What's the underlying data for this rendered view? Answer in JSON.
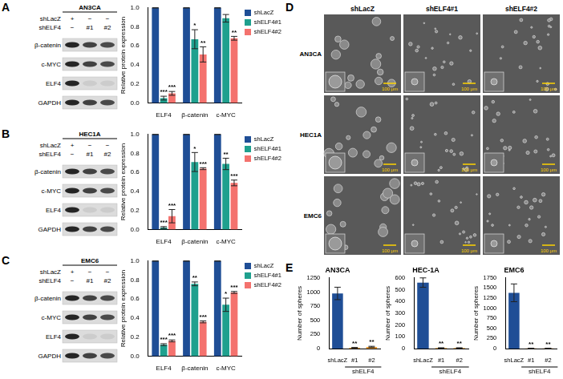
{
  "chart_data": [
    {
      "panel": "A",
      "type": "bar",
      "categories": [
        "ELF4",
        "β-catenin",
        "c-MYC"
      ],
      "y_label": "Relative protein expression",
      "ylim": [
        0,
        1
      ],
      "yticks": [
        {
          "value": 0,
          "label": "0.0"
        },
        {
          "value": 0.2,
          "label": "0.2"
        },
        {
          "value": 0.4,
          "label": "0.4"
        },
        {
          "value": 0.6,
          "label": "0.6"
        },
        {
          "value": 0.8,
          "label": "0.8"
        },
        {
          "value": 1,
          "label": "1.0"
        }
      ],
      "grid": false,
      "legend": "right",
      "series": [
        {
          "name": "shLacZ",
          "color": "#1f4e96",
          "values": [
            1,
            1,
            1
          ],
          "errors": [
            0,
            0,
            0
          ]
        },
        {
          "name": "shELF4#1",
          "color": "#1fa08e",
          "values": [
            0.05,
            0.67,
            0.89
          ],
          "errors": [
            0.02,
            0.1,
            0.04
          ],
          "significance": [
            "***",
            "*",
            null
          ]
        },
        {
          "name": "shELF4#2",
          "color": "#f4726e",
          "values": [
            0.1,
            0.51,
            0.68
          ],
          "errors": [
            0.02,
            0.08,
            0.02
          ],
          "significance": [
            "***",
            "**",
            "**"
          ]
        }
      ]
    },
    {
      "panel": "B",
      "type": "bar",
      "categories": [
        "ELF4",
        "β-catenin",
        "c-MYC"
      ],
      "y_label": "Relative protein expression",
      "ylim": [
        0,
        1
      ],
      "yticks": [
        {
          "value": 0,
          "label": "0.0"
        },
        {
          "value": 0.2,
          "label": "0.2"
        },
        {
          "value": 0.4,
          "label": "0.4"
        },
        {
          "value": 0.6,
          "label": "0.6"
        },
        {
          "value": 0.8,
          "label": "0.8"
        },
        {
          "value": 1,
          "label": "1.0"
        }
      ],
      "grid": false,
      "legend": "right",
      "series": [
        {
          "name": "shLacZ",
          "color": "#1f4e96",
          "values": [
            1,
            1,
            1
          ],
          "errors": [
            0,
            0,
            0
          ]
        },
        {
          "name": "shELF4#1",
          "color": "#1fa08e",
          "values": [
            0.02,
            0.71,
            0.69
          ],
          "errors": [
            0.01,
            0.1,
            0.06
          ],
          "significance": [
            "***",
            "*",
            "**"
          ]
        },
        {
          "name": "shELF4#2",
          "color": "#f4726e",
          "values": [
            0.14,
            0.64,
            0.49
          ],
          "errors": [
            0.07,
            0.01,
            0.03
          ],
          "significance": [
            "***",
            "***",
            "***"
          ]
        }
      ]
    },
    {
      "panel": "C",
      "type": "bar",
      "categories": [
        "ELF4",
        "β-catenin",
        "c-MYC"
      ],
      "y_label": "Relative protein expression",
      "ylim": [
        0,
        1
      ],
      "yticks": [
        {
          "value": 0,
          "label": "0.0"
        },
        {
          "value": 0.2,
          "label": "0.2"
        },
        {
          "value": 0.4,
          "label": "0.4"
        },
        {
          "value": 0.6,
          "label": "0.6"
        },
        {
          "value": 0.8,
          "label": "0.8"
        },
        {
          "value": 1,
          "label": "1.0"
        }
      ],
      "grid": false,
      "legend": "right",
      "series": [
        {
          "name": "shLacZ",
          "color": "#1f4e96",
          "values": [
            1,
            1,
            1
          ],
          "errors": [
            0,
            0,
            0
          ]
        },
        {
          "name": "shELF4#1",
          "color": "#1fa08e",
          "values": [
            0.12,
            0.76,
            0.54
          ],
          "errors": [
            0.01,
            0.02,
            0.07
          ],
          "significance": [
            "***",
            "**",
            "*"
          ]
        },
        {
          "name": "shELF4#2",
          "color": "#f4726e",
          "values": [
            0.16,
            0.36,
            0.67
          ],
          "errors": [
            0.01,
            0.01,
            0.01
          ],
          "significance": [
            "***",
            "***",
            "***"
          ]
        }
      ]
    },
    {
      "panel": "E",
      "type": "bar",
      "title": "AN3CA",
      "categories": [
        "shLacZ",
        "#1",
        "#2"
      ],
      "group_label": "shELF4",
      "y_label": "Number of spheres",
      "ylim": [
        0,
        1250
      ],
      "yticks": [
        0,
        250,
        500,
        750,
        1000,
        1250
      ],
      "grid": false,
      "values": [
        975,
        15,
        30
      ],
      "errors": [
        110,
        5,
        10
      ],
      "significance": [
        null,
        "**",
        "**"
      ],
      "colors": [
        "#1f4e96",
        "#f4a23a",
        "#f4a23a"
      ]
    },
    {
      "panel": "E",
      "type": "bar",
      "title": "HEC-1A",
      "categories": [
        "shLacZ",
        "#1",
        "#2"
      ],
      "group_label": "shELF4",
      "y_label": "Number of spheres",
      "ylim": [
        0,
        600
      ],
      "yticks": [
        0,
        100,
        200,
        300,
        400,
        500,
        600
      ],
      "grid": false,
      "values": [
        560,
        5,
        5
      ],
      "errors": [
        40,
        2,
        2
      ],
      "significance": [
        null,
        "**",
        "**"
      ],
      "colors": [
        "#1f4e96",
        "#f4a23a",
        "#f4a23a"
      ]
    },
    {
      "panel": "E",
      "type": "bar",
      "title": "EMC6",
      "categories": [
        "shLacZ",
        "#1",
        "#2"
      ],
      "group_label": "shELF4",
      "y_label": "Number of spheres",
      "ylim": [
        0,
        1750
      ],
      "yticks": [
        0,
        250,
        500,
        750,
        1000,
        1250,
        1500,
        1750
      ],
      "grid": false,
      "values": [
        1380,
        5,
        5
      ],
      "errors": [
        220,
        2,
        2
      ],
      "significance": [
        null,
        "**",
        "**"
      ],
      "colors": [
        "#1f4e96",
        "#f4a23a",
        "#f4a23a"
      ]
    }
  ],
  "blots": [
    {
      "panel": "A",
      "cell_line": "AN3CA",
      "lanes": [
        {
          "name": "shLacZ",
          "marks": [
            "+",
            "−",
            "−"
          ]
        },
        {
          "name": "shELF4",
          "marks": [
            "−",
            "#1",
            "#2"
          ]
        }
      ],
      "bands": [
        "β-catenin",
        "c-MYC",
        "ELF4",
        "GAPDH"
      ]
    },
    {
      "panel": "B",
      "cell_line": "HEC1A",
      "lanes": [
        {
          "name": "shLacZ",
          "marks": [
            "+",
            "−",
            "−"
          ]
        },
        {
          "name": "shELF4",
          "marks": [
            "−",
            "#1",
            "#2"
          ]
        }
      ],
      "bands": [
        "β-catenin",
        "c-MYC",
        "ELF4",
        "GAPDH"
      ]
    },
    {
      "panel": "C",
      "cell_line": "EMC6",
      "lanes": [
        {
          "name": "shLacZ",
          "marks": [
            "+",
            "−",
            "−"
          ]
        },
        {
          "name": "shELF4",
          "marks": [
            "−",
            "#1",
            "#2"
          ]
        }
      ],
      "bands": [
        "β-catenin",
        "c-MYC",
        "ELF4",
        "GAPDH"
      ]
    }
  ],
  "images": {
    "panel": "D",
    "columns": [
      "shLacZ",
      "shELF4#1",
      "shELF4#2"
    ],
    "rows": [
      "AN3CA",
      "HEC1A",
      "EMC6"
    ],
    "scale_bar": "100 μm"
  }
}
